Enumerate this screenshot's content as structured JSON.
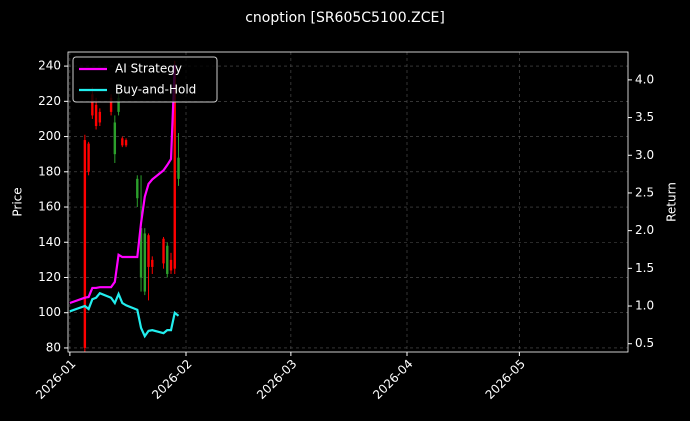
{
  "chart_data": {
    "type": "candlestick",
    "title": "cnoption [SR605C5100.ZCE]",
    "y_label": "Price",
    "y2_label": "Return",
    "x": [
      0,
      4,
      5,
      6,
      7,
      8,
      11,
      12,
      13,
      14,
      15,
      18,
      19,
      20,
      21,
      22,
      25,
      26,
      27,
      28,
      29
    ],
    "open": [
      null,
      198,
      196,
      224,
      218,
      214,
      222,
      190,
      214,
      199,
      198,
      165,
      120,
      112,
      144,
      130,
      142,
      122,
      130,
      240,
      176
    ],
    "high": [
      null,
      201,
      197,
      228,
      222,
      216,
      224,
      212,
      225,
      200,
      199,
      178,
      178,
      148,
      145,
      132,
      143,
      140,
      134,
      243,
      202
    ],
    "low": [
      null,
      76,
      178,
      210,
      204,
      206,
      212,
      185,
      212,
      194,
      194,
      160,
      112,
      110,
      107,
      122,
      125,
      120,
      122,
      122,
      172
    ],
    "close": [
      null,
      80,
      180,
      212,
      206,
      208,
      214,
      208,
      222,
      195,
      195,
      176,
      148,
      145,
      126,
      126,
      128,
      138,
      124,
      125,
      188
    ],
    "up_color": "#2ca02c",
    "down_color": "#ff0000",
    "series": [
      {
        "name": "AI Strategy",
        "color": "#ff00ff",
        "axis": "y2",
        "values": [
          1.04,
          1.11,
          1.12,
          1.24,
          1.24,
          1.25,
          1.25,
          1.32,
          1.68,
          1.65,
          1.65,
          1.65,
          2.1,
          2.45,
          2.62,
          2.68,
          2.8,
          2.87,
          2.95,
          4.2,
          null
        ]
      },
      {
        "name": "Buy-and-Hold",
        "color": "#22eeee",
        "axis": "y2",
        "values": [
          0.93,
          1.0,
          0.96,
          1.09,
          1.11,
          1.17,
          1.11,
          1.04,
          1.16,
          1.04,
          1.01,
          0.95,
          0.71,
          0.6,
          0.67,
          0.68,
          0.64,
          0.68,
          0.68,
          0.91,
          0.87
        ]
      }
    ],
    "xlim": [
      -0.5,
      149
    ],
    "xticks": [
      {
        "value": 0,
        "label": "2026-01"
      },
      {
        "value": 31,
        "label": "2026-02"
      },
      {
        "value": 59,
        "label": "2026-03"
      },
      {
        "value": 90,
        "label": "2026-04"
      },
      {
        "value": 120,
        "label": "2026-05"
      }
    ],
    "ylim": [
      77.7,
      248
    ],
    "yticks": [
      80,
      100,
      120,
      140,
      160,
      180,
      200,
      220,
      240
    ],
    "y2lim": [
      0.39,
      4.37
    ],
    "y2ticks": [
      0.5,
      {
        "value": 1.0,
        "label": "1.0"
      },
      1.5,
      {
        "value": 2.0,
        "label": "2.0"
      },
      2.5,
      {
        "value": 3.0,
        "label": "3.0"
      },
      3.5,
      {
        "value": 4.0,
        "label": "4.0"
      }
    ],
    "grid": true,
    "legend": "upper left"
  }
}
